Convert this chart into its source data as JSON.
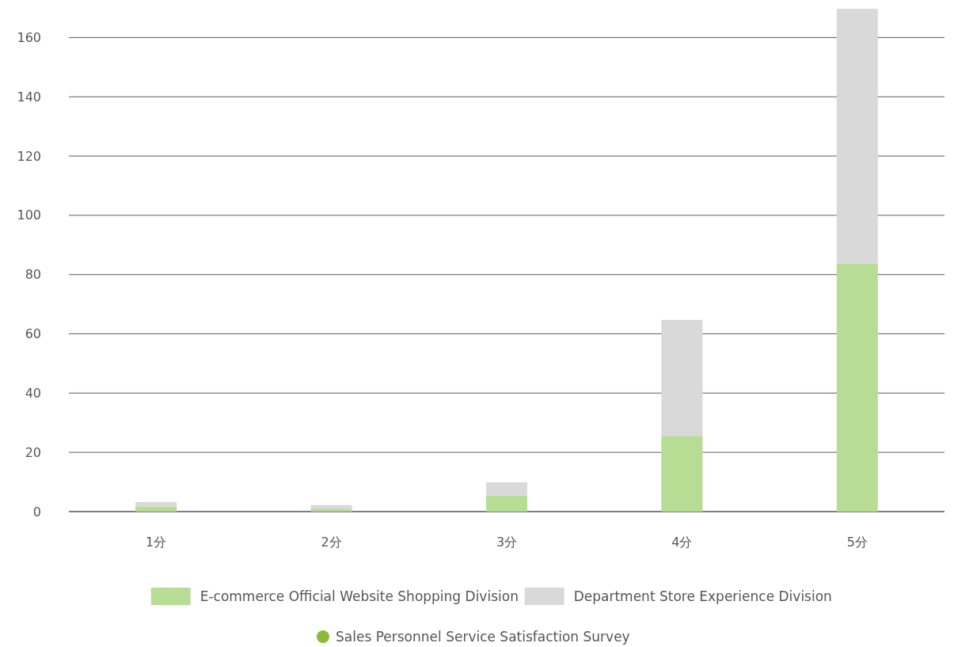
{
  "chart_data": {
    "type": "bar",
    "stacked": true,
    "title": "Sales Personnel Service Satisfaction Survey",
    "categories": [
      "1分",
      "2分",
      "3分",
      "4分",
      "5分"
    ],
    "series": [
      {
        "name": "E-commerce Official Website Shopping Division",
        "color": "#b7dd95",
        "values": [
          1.7,
          0.8,
          5.4,
          25.4,
          83.7
        ]
      },
      {
        "name": "Department Store Experience Division",
        "color": "#d9d9d9",
        "values": [
          1.5,
          1.4,
          4.5,
          39.3,
          86
        ]
      }
    ],
    "ylim": [
      0,
      170
    ],
    "yticks": [
      0,
      20,
      40,
      60,
      80,
      100,
      120,
      140,
      160
    ],
    "grid": "y",
    "legend": "bottom"
  }
}
